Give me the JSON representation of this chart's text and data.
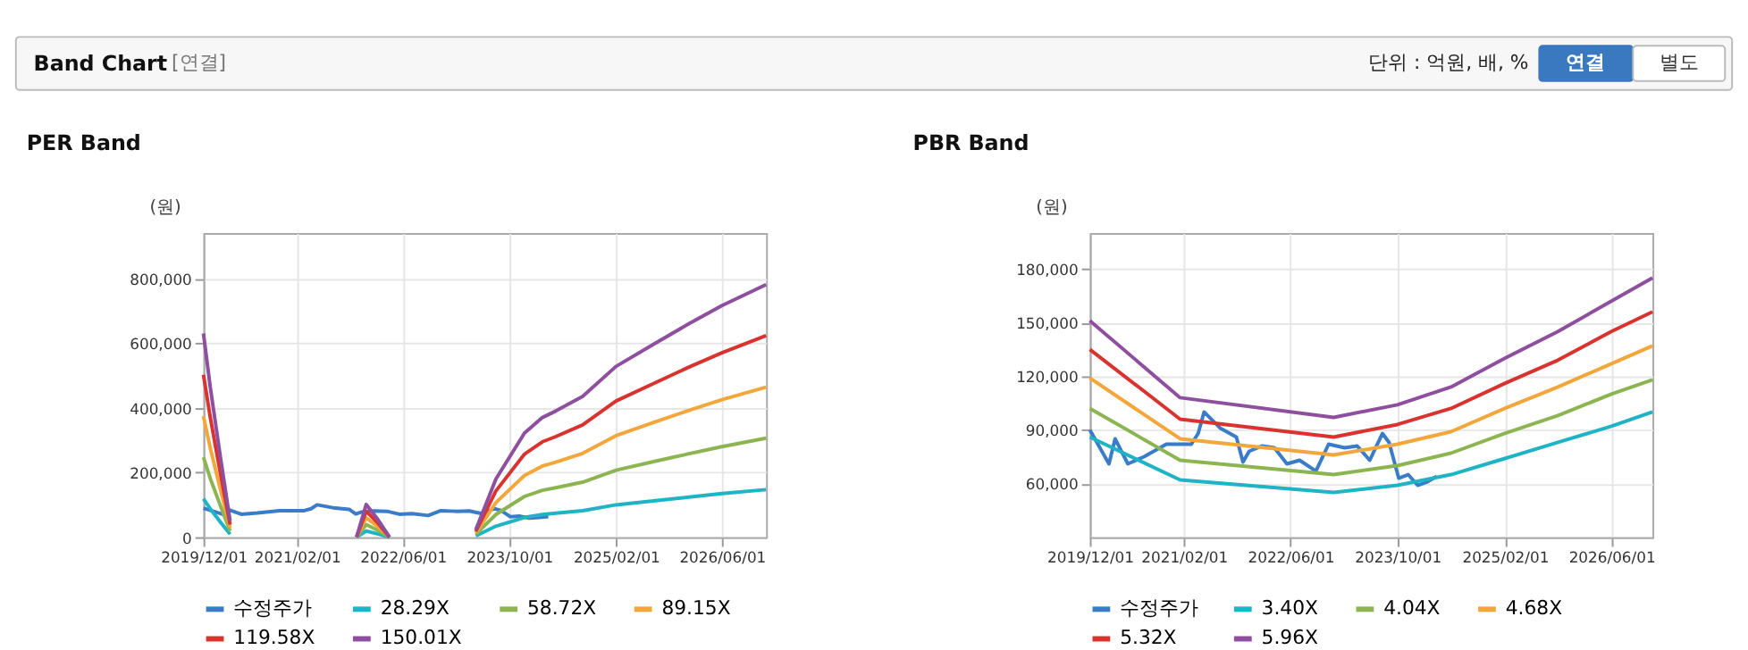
{
  "chart_data": [
    {
      "type": "line",
      "title": "PER Band",
      "ylabel": "(원)",
      "annotations": [
        "Band Chart",
        "[연결]",
        "단위 : 억원, 배, %",
        "연결",
        "별도"
      ],
      "grid": true,
      "legend": "bottom",
      "line_style": "solid",
      "x": [
        "2019-12-01",
        "2020-01-01",
        "2020-02-15",
        "2020-04-01",
        "2021-01-01",
        "2021-11-01",
        "2021-12-15",
        "2022-02-01",
        "2022-04-01",
        "2022-10-01",
        "2023-05-01",
        "2023-08-01",
        "2023-12-10",
        "2024-03-01",
        "2024-05-01",
        "2024-09-01",
        "2025-02-01",
        "2025-08-01",
        "2026-01-01",
        "2026-06-01",
        "2026-12-20"
      ],
      "xlim": [
        "2019-12-01",
        "2026-12-20"
      ],
      "xticks": [
        {
          "value": "2019-12-01",
          "label": "2019/12/01"
        },
        {
          "value": "2021-02-01",
          "label": "2021/02/01"
        },
        {
          "value": "2022-06-01",
          "label": "2022/06/01"
        },
        {
          "value": "2023-10-01",
          "label": "2023/10/01"
        },
        {
          "value": "2025-02-01",
          "label": "2025/02/01"
        },
        {
          "value": "2026-06-01",
          "label": "2026/06/01"
        }
      ],
      "ylim": [
        0,
        940000
      ],
      "yticks": [
        0,
        {
          "value": 200000,
          "label": "200,000"
        },
        {
          "value": 400000,
          "label": "400,000"
        },
        {
          "value": 600000,
          "label": "600,000"
        },
        {
          "value": 800000,
          "label": "800,000"
        }
      ],
      "series": [
        {
          "name": "수정주가",
          "color": "#3a7cc8",
          "x": [
            "2019-12-01",
            "2020-02-26",
            "2020-03-25",
            "2020-05-22",
            "2020-08-04",
            "2020-11-13",
            "2021-03-07",
            "2021-04-07",
            "2021-05-04",
            "2021-07-16",
            "2021-09-28",
            "2021-10-28",
            "2021-11-25",
            "2022-01-22",
            "2022-03-20",
            "2022-05-16",
            "2022-07-13",
            "2022-09-25",
            "2022-11-22",
            "2023-02-03",
            "2023-04-01",
            "2023-05-28",
            "2023-07-25",
            "2023-08-24",
            "2023-10-07",
            "2023-11-19",
            "2024-01-01",
            "2024-02-15",
            "2024-03-28"
          ],
          "values": [
            90000,
            71000,
            85000,
            71000,
            75000,
            82000,
            82000,
            88000,
            100000,
            91000,
            86000,
            72000,
            78000,
            81000,
            80000,
            71000,
            73000,
            67000,
            82000,
            80000,
            81000,
            73000,
            88000,
            83000,
            63000,
            65000,
            59000,
            61000,
            64000
          ]
        },
        {
          "name": "28.29X",
          "color": "#1fb3c6",
          "values": [
            119000,
            88000,
            48000,
            9000,
            null,
            0,
            19000,
            11000,
            0,
            null,
            4000,
            34000,
            61000,
            70000,
            74000,
            82000,
            100000,
            113000,
            124000,
            135000,
            147000
          ]
        },
        {
          "name": "58.72X",
          "color": "#8cb552",
          "values": [
            247000,
            182000,
            100000,
            19000,
            null,
            0,
            39000,
            23000,
            0,
            null,
            9000,
            70000,
            126000,
            145000,
            153000,
            170000,
            207000,
            235000,
            258000,
            280000,
            306000
          ]
        },
        {
          "name": "89.15X",
          "color": "#f3a73b",
          "values": [
            374000,
            276000,
            152000,
            29000,
            null,
            0,
            60000,
            36000,
            0,
            null,
            13000,
            107000,
            191000,
            220000,
            232000,
            259000,
            314000,
            357000,
            392000,
            425000,
            464000
          ]
        },
        {
          "name": "119.58X",
          "color": "#d93330",
          "values": [
            502000,
            371000,
            203000,
            39000,
            null,
            0,
            80000,
            48000,
            0,
            null,
            18000,
            143000,
            257000,
            295000,
            311000,
            347000,
            421000,
            478000,
            526000,
            570000,
            623000
          ]
        },
        {
          "name": "150.01X",
          "color": "#8e4f9e",
          "values": [
            630000,
            465000,
            255000,
            50000,
            null,
            0,
            101000,
            60000,
            0,
            null,
            23000,
            180000,
            322000,
            370000,
            390000,
            435000,
            528000,
            600000,
            660000,
            716000,
            781000
          ]
        }
      ]
    },
    {
      "type": "line",
      "title": "PBR Band",
      "ylabel": "(원)",
      "grid": true,
      "legend": "bottom",
      "line_style": "solid",
      "x": [
        "2019-12-01",
        "2021-01-15",
        "2022-12-15",
        "2023-10-01",
        "2024-06-01",
        "2025-02-01",
        "2025-10-01",
        "2026-06-01",
        "2026-12-05"
      ],
      "xlim": [
        "2019-12-01",
        "2026-12-05"
      ],
      "xticks": [
        {
          "value": "2019-12-01",
          "label": "2019/12/01"
        },
        {
          "value": "2021-02-01",
          "label": "2021/02/01"
        },
        {
          "value": "2022-06-01",
          "label": "2022/06/01"
        },
        {
          "value": "2023-10-01",
          "label": "2023/10/01"
        },
        {
          "value": "2025-02-01",
          "label": "2025/02/01"
        },
        {
          "value": "2026-06-01",
          "label": "2026/06/01"
        }
      ],
      "ylim": [
        30000,
        200000
      ],
      "yticks": [
        {
          "value": 60000,
          "label": "60,000"
        },
        {
          "value": 90000,
          "label": "90,000"
        },
        {
          "value": 120000,
          "label": "120,000"
        },
        {
          "value": 150000,
          "label": "150,000"
        },
        {
          "value": 180000,
          "label": "180,000"
        }
      ],
      "series": [
        {
          "name": "수정주가",
          "color": "#3a7cc8",
          "x": [
            "2019-12-01",
            "2020-02-26",
            "2020-03-25",
            "2020-05-22",
            "2020-08-04",
            "2020-11-13",
            "2021-03-07",
            "2021-04-07",
            "2021-05-04",
            "2021-07-16",
            "2021-09-28",
            "2021-10-28",
            "2021-11-25",
            "2022-01-22",
            "2022-03-20",
            "2022-05-16",
            "2022-07-13",
            "2022-09-25",
            "2022-11-22",
            "2023-02-03",
            "2023-04-01",
            "2023-05-28",
            "2023-07-25",
            "2023-08-24",
            "2023-10-07",
            "2023-11-19",
            "2024-01-01",
            "2024-02-15",
            "2024-03-28"
          ],
          "values": [
            90000,
            71000,
            85000,
            71000,
            75000,
            82000,
            82000,
            88000,
            100000,
            91000,
            86000,
            72000,
            78000,
            81000,
            80000,
            71000,
            73000,
            67000,
            82000,
            80000,
            81000,
            73000,
            88000,
            83000,
            63000,
            65000,
            59000,
            61000,
            64000
          ]
        },
        {
          "name": "3.40X",
          "color": "#1fb3c6",
          "values": [
            86000,
            62000,
            55000,
            59000,
            65000,
            74000,
            83000,
            92000,
            100000
          ]
        },
        {
          "name": "4.04X",
          "color": "#8cb552",
          "values": [
            102000,
            73000,
            65000,
            70000,
            77000,
            88000,
            98000,
            110000,
            118000
          ]
        },
        {
          "name": "4.68X",
          "color": "#f3a73b",
          "values": [
            119000,
            85000,
            76000,
            82000,
            89000,
            102000,
            114000,
            127000,
            137000
          ]
        },
        {
          "name": "5.32X",
          "color": "#d93330",
          "values": [
            135000,
            96000,
            86000,
            93000,
            102000,
            116000,
            129000,
            145000,
            156000
          ]
        },
        {
          "name": "5.96X",
          "color": "#8e4f9e",
          "values": [
            151000,
            108000,
            97000,
            104000,
            114000,
            130000,
            145000,
            162000,
            175000
          ]
        }
      ]
    }
  ]
}
